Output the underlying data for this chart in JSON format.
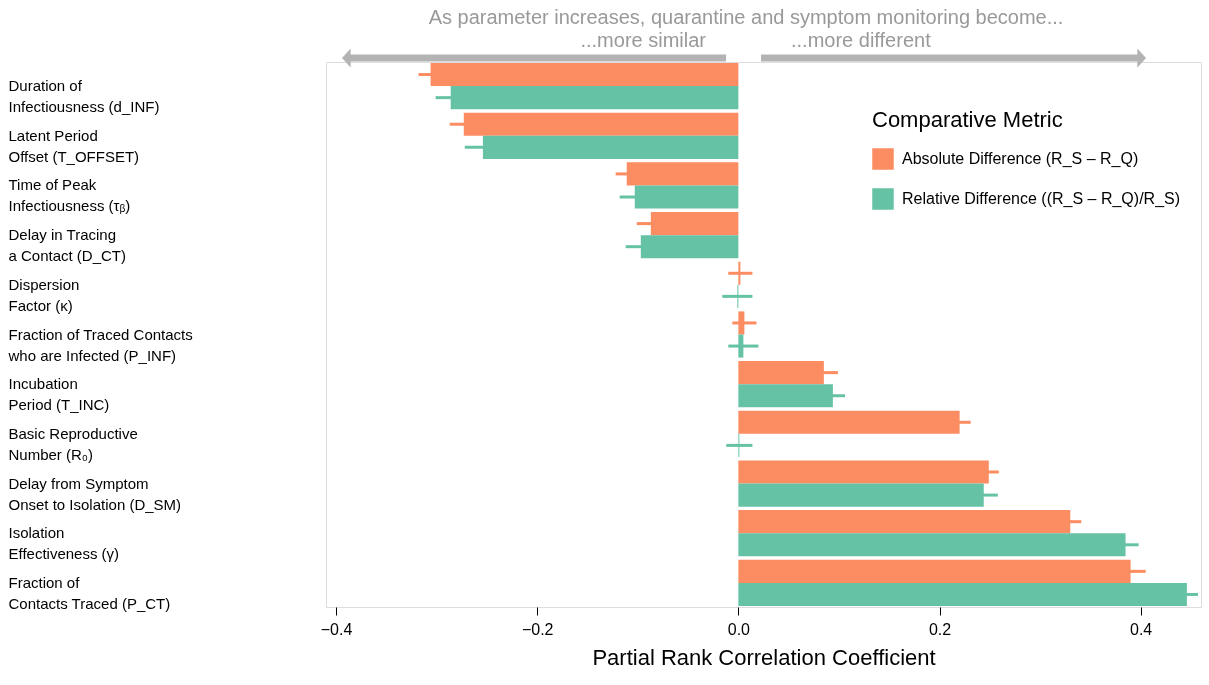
{
  "chart_data": {
    "type": "bar",
    "orientation": "horizontal",
    "xlabel": "Partial Rank Correlation Coefficient",
    "legend_title": "Comparative Metric",
    "legend": "top right",
    "grid": false,
    "categories": [
      "Duration of\nInfectiousness (d_INF)",
      "Latent Period\nOffset            (T_OFFSET)",
      "Time of Peak\nInfectiousness (τᵦ)",
      "Delay in Tracing\na Contact          (D_CT)",
      "Dispersion\nFactor        (κ)",
      "Fraction of Traced Contacts\nwho are Infected                (P_INF)",
      "Incubation\nPeriod       (T_INC)",
      "Basic Reproductive\nNumber                 (R₀)",
      "Delay from Symptom\nOnset to Isolation     (D_SM)",
      "Isolation\nEffectiveness (γ)",
      "Fraction of\nContacts Traced (P_CT)"
    ],
    "series": [
      {
        "name": "Absolute Difference (R_S – R_Q)",
        "color": "#fc8d62",
        "values": [
          -0.306,
          -0.273,
          -0.111,
          -0.087,
          0.002,
          0.006,
          0.085,
          0.22,
          0.249,
          0.33,
          0.39
        ],
        "errors": [
          0.012,
          0.014,
          0.011,
          0.014,
          0.012,
          0.012,
          0.014,
          0.011,
          0.01,
          0.011,
          0.015
        ]
      },
      {
        "name": "Relative Difference ((R_S – R_Q)/R_S)",
        "color": "#66c2a5",
        "values": [
          -0.286,
          -0.254,
          -0.103,
          -0.097,
          -0.001,
          0.005,
          0.094,
          0.001,
          0.244,
          0.385,
          0.446
        ],
        "errors": [
          0.015,
          0.018,
          0.015,
          0.015,
          0.015,
          0.015,
          0.012,
          0.013,
          0.014,
          0.013,
          0.011
        ]
      }
    ],
    "xlim": [
      -0.41,
      0.46
    ],
    "xticks": [
      {
        "value": -0.4,
        "label": "−0.4"
      },
      {
        "value": -0.2,
        "label": "−0.2"
      },
      {
        "value": 0,
        "label": "0.0"
      },
      {
        "value": 0.2,
        "label": "0.2"
      },
      {
        "value": 0.4,
        "label": "0.4"
      }
    ],
    "annotations": [
      "As parameter increases, quarantine and symptom monitoring become...",
      "...more similar",
      "...more different"
    ]
  }
}
